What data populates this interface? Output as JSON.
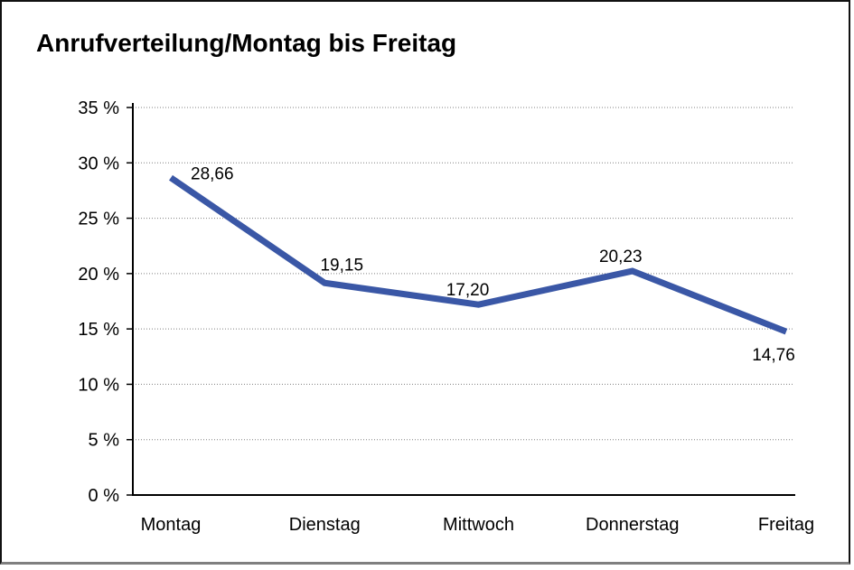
{
  "window": {
    "title": "Anrufverteilung/Montag bis Freitag"
  },
  "chart_data": {
    "type": "line",
    "title": "Anrufverteilung/Montag bis Freitag",
    "categories": [
      "Montag",
      "Dienstag",
      "Mittwoch",
      "Donnerstag",
      "Freitag"
    ],
    "series": [
      {
        "name": "Anrufverteilung",
        "values": [
          28.66,
          19.15,
          17.2,
          20.23,
          14.76
        ]
      }
    ],
    "point_labels": [
      "28,66",
      "19,15",
      "17,20",
      "20,23",
      "14,76"
    ],
    "y_ticks": [
      {
        "value": 0,
        "label": "0 %"
      },
      {
        "value": 5,
        "label": "5 %"
      },
      {
        "value": 10,
        "label": "10 %"
      },
      {
        "value": 15,
        "label": "15 %"
      },
      {
        "value": 20,
        "label": "20 %"
      },
      {
        "value": 25,
        "label": "25 %"
      },
      {
        "value": 30,
        "label": "30 %"
      },
      {
        "value": 35,
        "label": "35 %"
      }
    ],
    "ylim": [
      0,
      35
    ],
    "xlabel": "",
    "ylabel": "",
    "legend": "none",
    "grid": "horizontal-dotted",
    "colors": {
      "line": "#3A57A6",
      "axis": "#000000",
      "gridline": "#808080",
      "text": "#000000",
      "frame_border": "#111111",
      "frame_bottom": "#7F7F7F",
      "background": "#FFFFFF"
    }
  }
}
